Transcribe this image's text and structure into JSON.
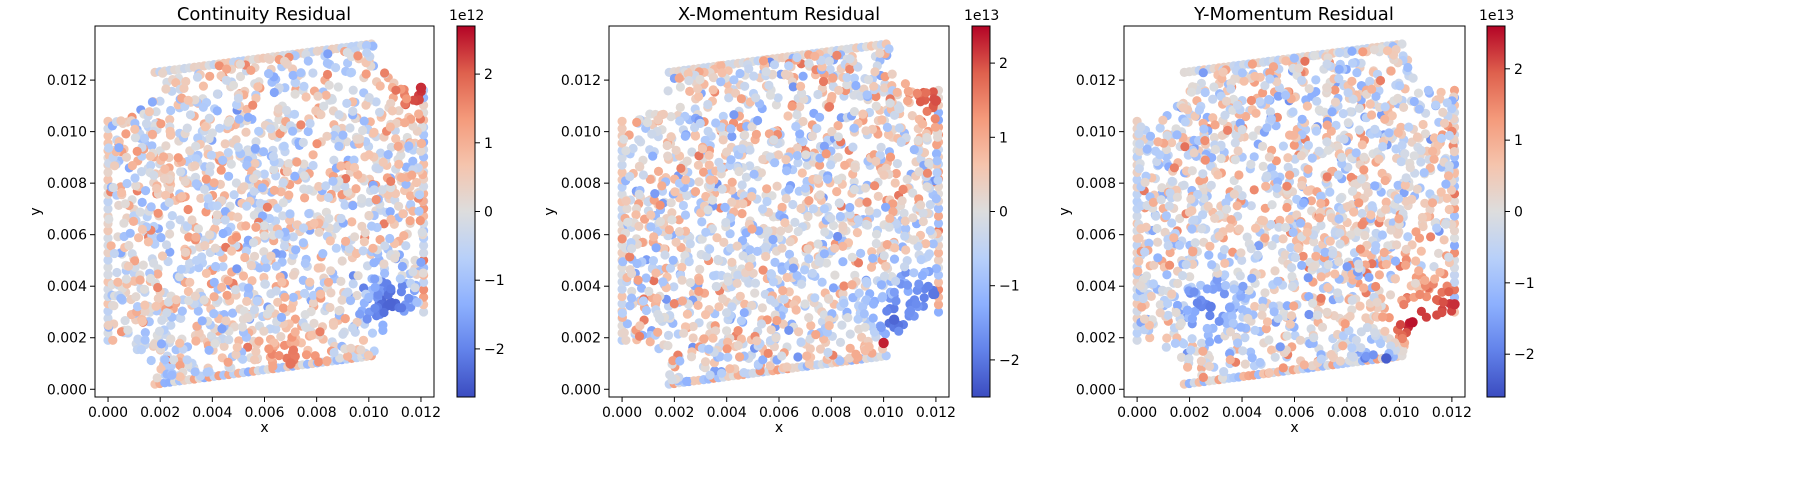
{
  "chart_data": [
    {
      "type": "scatter",
      "title": "Continuity Residual",
      "xlabel": "x",
      "ylabel": "y",
      "xlim": [
        -0.0005,
        0.0125
      ],
      "ylim": [
        -0.0003,
        0.0141
      ],
      "xticks": [
        "0.000",
        "0.002",
        "0.004",
        "0.006",
        "0.008",
        "0.010",
        "0.012"
      ],
      "yticks": [
        "0.000",
        "0.002",
        "0.004",
        "0.006",
        "0.008",
        "0.010",
        "0.012"
      ],
      "colormap": "coolwarm",
      "color_range": [
        -2.7,
        2.7
      ],
      "colorbar_ticks": [
        -2,
        -1,
        0,
        1,
        2
      ],
      "colorbar_exponent": "1e12",
      "hotspots": [
        {
          "x": 0.012,
          "y": 0.0117,
          "value": 2.4
        },
        {
          "x": 0.0108,
          "y": 0.0033,
          "value": -2.4
        },
        {
          "x": 0.007,
          "y": 0.001,
          "value": 1.8
        }
      ],
      "seed": 11
    },
    {
      "type": "scatter",
      "title": "X-Momentum Residual",
      "xlabel": "x",
      "ylabel": "y",
      "xlim": [
        -0.0005,
        0.0125
      ],
      "ylim": [
        -0.0003,
        0.0141
      ],
      "xticks": [
        "0.000",
        "0.002",
        "0.004",
        "0.006",
        "0.008",
        "0.010",
        "0.012"
      ],
      "yticks": [
        "0.000",
        "0.002",
        "0.004",
        "0.006",
        "0.008",
        "0.010",
        "0.012"
      ],
      "colormap": "coolwarm",
      "color_range": [
        -2.5,
        2.5
      ],
      "colorbar_ticks": [
        -2,
        -1,
        0,
        1,
        2
      ],
      "colorbar_exponent": "1e13",
      "hotspots": [
        {
          "x": 0.012,
          "y": 0.0112,
          "value": 2.0
        },
        {
          "x": 0.01,
          "y": 0.0018,
          "value": 2.3
        },
        {
          "x": 0.0104,
          "y": 0.0027,
          "value": -2.2
        },
        {
          "x": 0.0119,
          "y": 0.0037,
          "value": -2.0
        }
      ],
      "seed": 23
    },
    {
      "type": "scatter",
      "title": "Y-Momentum Residual",
      "xlabel": "x",
      "ylabel": "y",
      "xlim": [
        -0.0005,
        0.0125
      ],
      "ylim": [
        -0.0003,
        0.0141
      ],
      "xticks": [
        "0.000",
        "0.002",
        "0.004",
        "0.006",
        "0.008",
        "0.010",
        "0.012"
      ],
      "yticks": [
        "0.000",
        "0.002",
        "0.004",
        "0.006",
        "0.008",
        "0.010",
        "0.012"
      ],
      "colormap": "coolwarm",
      "color_range": [
        -2.6,
        2.6
      ],
      "colorbar_ticks": [
        -2,
        -1,
        0,
        1,
        2
      ],
      "colorbar_exponent": "1e13",
      "hotspots": [
        {
          "x": 0.0095,
          "y": 0.0012,
          "value": -2.4
        },
        {
          "x": 0.0105,
          "y": 0.0026,
          "value": 2.5
        },
        {
          "x": 0.0121,
          "y": 0.0033,
          "value": 2.3
        },
        {
          "x": 0.0028,
          "y": 0.0032,
          "value": -2.0
        }
      ],
      "seed": 37
    }
  ]
}
